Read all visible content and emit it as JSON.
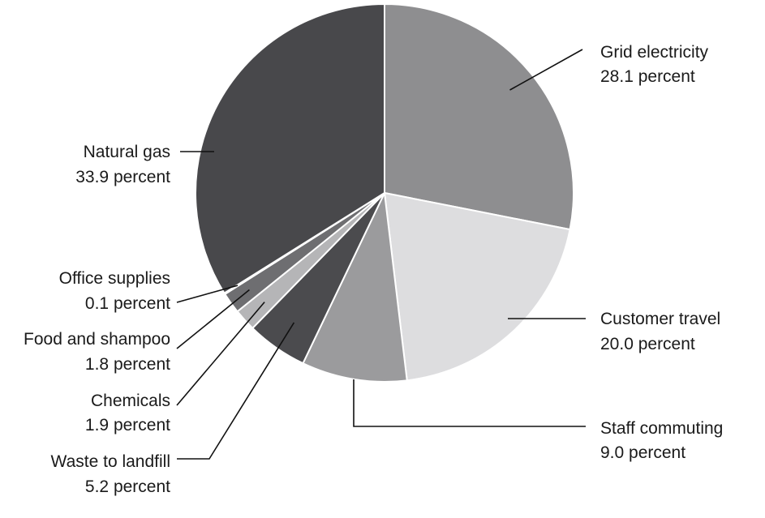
{
  "chart_data": {
    "type": "pie",
    "title": "",
    "start": "12 o'clock, clockwise",
    "slices": [
      {
        "name": "Grid electricity",
        "value": 28.1,
        "label": "28.1 percent",
        "color": "#8e8e90"
      },
      {
        "name": "Customer travel",
        "value": 20.0,
        "label": "20.0 percent",
        "color": "#dddddf"
      },
      {
        "name": "Staff commuting",
        "value": 9.0,
        "label": "9.0 percent",
        "color": "#9b9b9d"
      },
      {
        "name": "Waste to landfill",
        "value": 5.2,
        "label": "5.2 percent",
        "color": "#4b4b4e"
      },
      {
        "name": "Chemicals",
        "value": 1.9,
        "label": "1.9 percent",
        "color": "#b5b5b7"
      },
      {
        "name": "Food and shampoo",
        "value": 1.8,
        "label": "1.8 percent",
        "color": "#6e6e71"
      },
      {
        "name": "Office supplies",
        "value": 0.1,
        "label": "0.1 percent",
        "color": "#d7d7d9"
      },
      {
        "name": "Natural gas",
        "value": 33.9,
        "label": "33.9 percent",
        "color": "#48484b"
      }
    ]
  }
}
